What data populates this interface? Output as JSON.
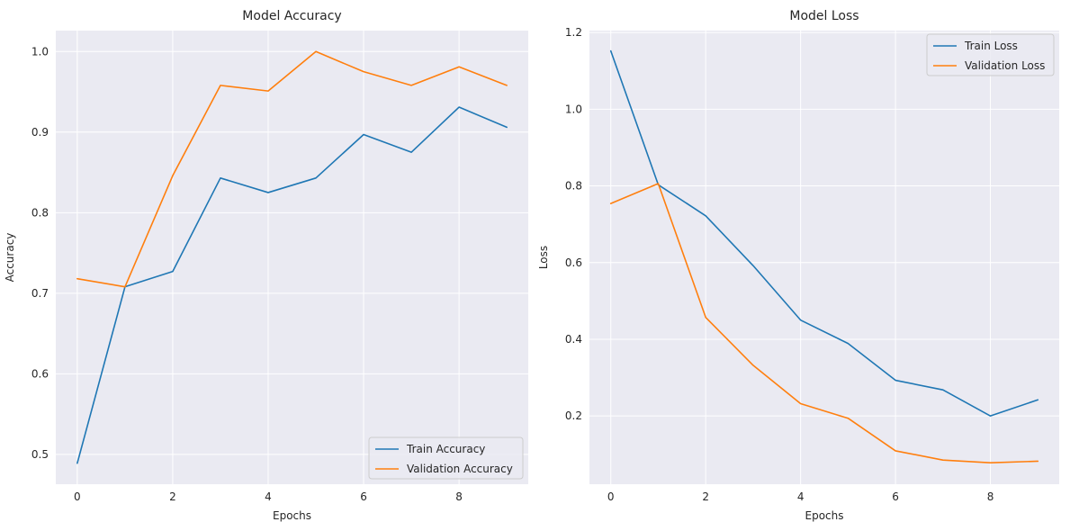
{
  "chart_data": [
    {
      "type": "line",
      "title": "Model Accuracy",
      "xlabel": "Epochs",
      "ylabel": "Accuracy",
      "x": [
        0,
        1,
        2,
        3,
        4,
        5,
        6,
        7,
        8,
        9
      ],
      "xlim": [
        -0.45,
        9.45
      ],
      "ylim": [
        0.463,
        1.026
      ],
      "xticks": [
        0,
        2,
        4,
        6,
        8
      ],
      "yticks": [
        0.5,
        0.6,
        0.7,
        0.8,
        0.9,
        1.0
      ],
      "ytick_labels": [
        "0.5",
        "0.6",
        "0.7",
        "0.8",
        "0.9",
        "1.0"
      ],
      "grid": true,
      "legend_position": "lower-right",
      "series": [
        {
          "name": "Train Accuracy",
          "color": "#1f77b4",
          "values": [
            0.489,
            0.708,
            0.727,
            0.843,
            0.825,
            0.843,
            0.897,
            0.875,
            0.931,
            0.906
          ]
        },
        {
          "name": "Validation Accuracy",
          "color": "#ff7f0e",
          "values": [
            0.718,
            0.708,
            0.846,
            0.958,
            0.951,
            1.0,
            0.975,
            0.958,
            0.981,
            0.958
          ]
        }
      ]
    },
    {
      "type": "line",
      "title": "Model Loss",
      "xlabel": "Epochs",
      "ylabel": "Loss",
      "x": [
        0,
        1,
        2,
        3,
        4,
        5,
        6,
        7,
        8,
        9
      ],
      "xlim": [
        -0.45,
        9.45
      ],
      "ylim": [
        0.022,
        1.205
      ],
      "xticks": [
        0,
        2,
        4,
        6,
        8
      ],
      "yticks": [
        0.2,
        0.4,
        0.6,
        0.8,
        1.0,
        1.2
      ],
      "ytick_labels": [
        "0.2",
        "0.4",
        "0.6",
        "0.8",
        "1.0",
        "1.2"
      ],
      "grid": true,
      "legend_position": "top-right",
      "series": [
        {
          "name": "Train Loss",
          "color": "#1f77b4",
          "values": [
            1.152,
            0.803,
            0.722,
            0.592,
            0.45,
            0.389,
            0.293,
            0.268,
            0.2,
            0.242
          ]
        },
        {
          "name": "Validation Loss",
          "color": "#ff7f0e",
          "values": [
            0.754,
            0.806,
            0.457,
            0.332,
            0.232,
            0.194,
            0.109,
            0.085,
            0.078,
            0.082
          ]
        }
      ]
    }
  ]
}
